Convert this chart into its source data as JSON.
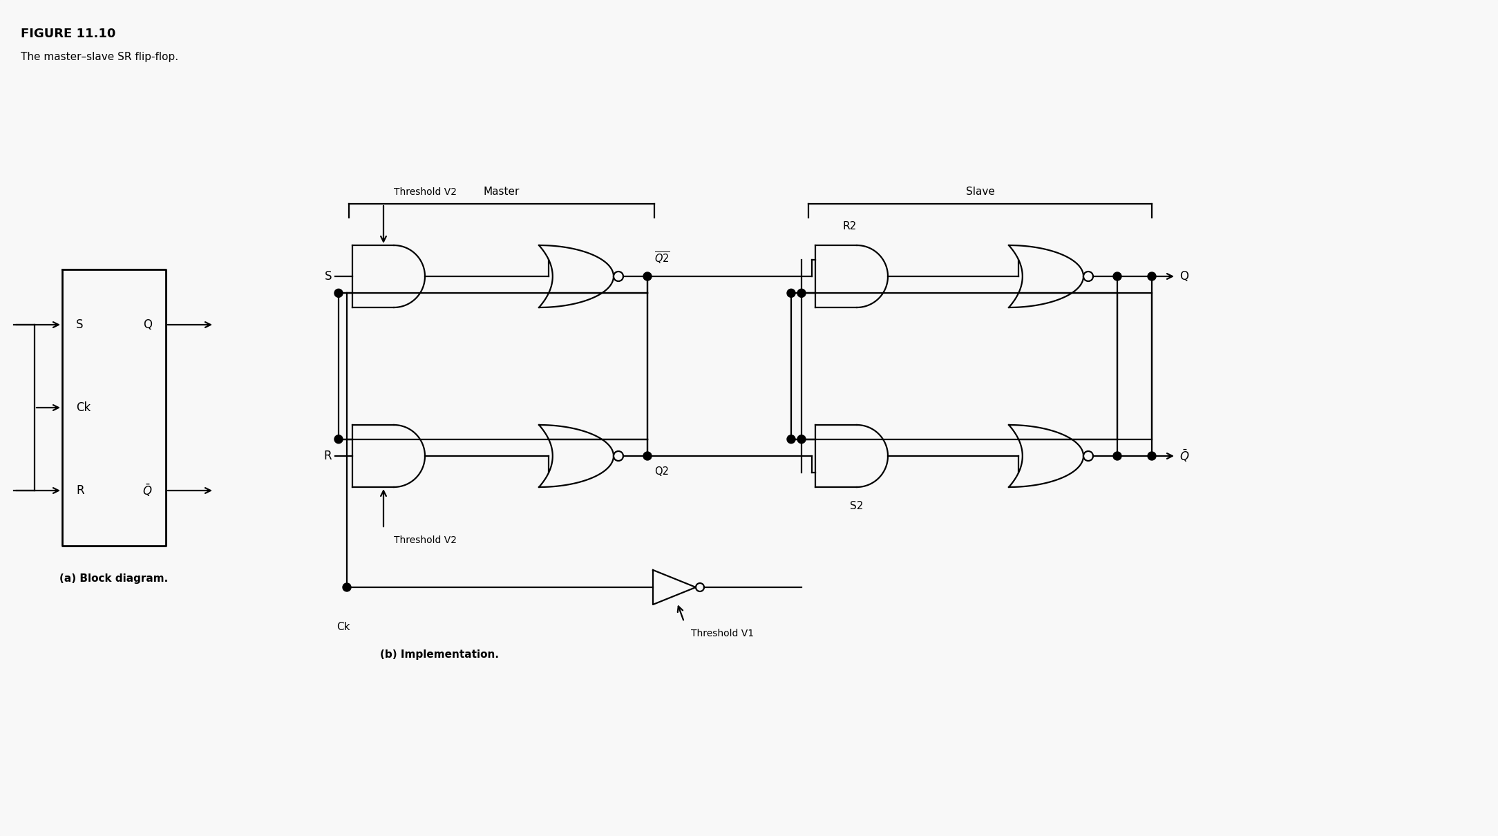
{
  "title": "FIGURE 11.10",
  "subtitle": "The master–slave SR flip-flop.",
  "bg_color": "#cfe0ec",
  "inner_bg": "#f0f0f0",
  "label_a": "(a) Block diagram.",
  "label_b": "(b) Implementation.",
  "master_label": "Master",
  "slave_label": "Slave",
  "border_color": "#7ab0cc"
}
